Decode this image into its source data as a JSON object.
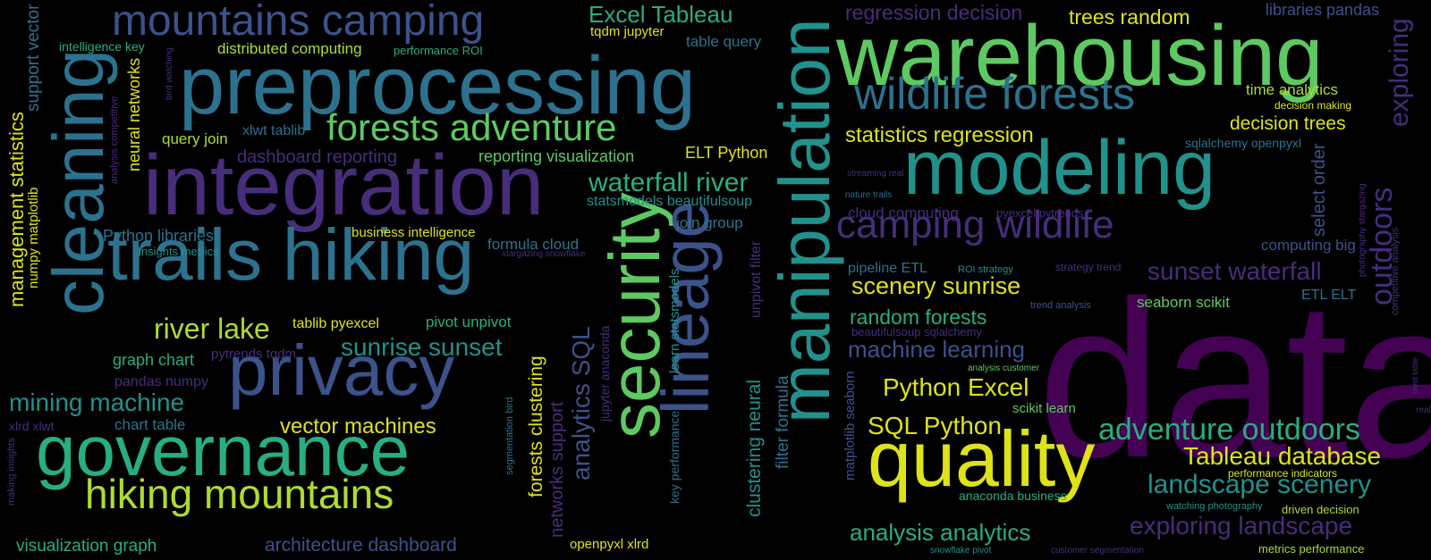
{
  "wordcloud": {
    "palette": {
      "dark_purple": "#440154",
      "purple": "#472d7b",
      "indigo": "#3b528b",
      "blue": "#2c728e",
      "teal": "#21918c",
      "green_teal": "#28ae80",
      "green": "#5ec962",
      "lime": "#addc30",
      "yellow": "#dde318"
    },
    "words": [
      {
        "text": "data",
        "color": "#440154"
      },
      {
        "text": "warehousing",
        "color": "#5ec962"
      },
      {
        "text": "preprocessing",
        "color": "#2c728e"
      },
      {
        "text": "integration",
        "color": "#472d7b"
      },
      {
        "text": "modeling",
        "color": "#21918c"
      },
      {
        "text": "trails hiking",
        "color": "#2c728e"
      },
      {
        "text": "governance",
        "color": "#28ae80"
      },
      {
        "text": "privacy",
        "color": "#3b528b"
      },
      {
        "text": "quality",
        "color": "#dde318"
      },
      {
        "text": "cleaning",
        "color": "#2c728e"
      },
      {
        "text": "security",
        "color": "#5ec962"
      },
      {
        "text": "manipulation",
        "color": "#21918c"
      },
      {
        "text": "lineage",
        "color": "#3b528b"
      },
      {
        "text": "mountains camping",
        "color": "#3b528b"
      },
      {
        "text": "wildlife forests",
        "color": "#2c728e"
      },
      {
        "text": "camping wildlife",
        "color": "#472d7b"
      },
      {
        "text": "forests adventure",
        "color": "#5ec962"
      },
      {
        "text": "hiking mountains",
        "color": "#addc30"
      },
      {
        "text": "Excel Tableau",
        "color": "#28ae80"
      },
      {
        "text": "regression decision",
        "color": "#472d7b"
      },
      {
        "text": "trees random",
        "color": "#dde318"
      },
      {
        "text": "libraries pandas",
        "color": "#3b528b"
      },
      {
        "text": "exploring",
        "color": "#472d7b"
      },
      {
        "text": "outdoors",
        "color": "#472d7b"
      },
      {
        "text": "time analytics",
        "color": "#addc30"
      },
      {
        "text": "decision making",
        "color": "#dde318"
      },
      {
        "text": "decision trees",
        "color": "#dde318"
      },
      {
        "text": "statistics regression",
        "color": "#dde318"
      },
      {
        "text": "sqlalchemy openpyxl",
        "color": "#2c728e"
      },
      {
        "text": "select order",
        "color": "#3b528b"
      },
      {
        "text": "photography stargazing",
        "color": "#472d7b"
      },
      {
        "text": "competitive analysis",
        "color": "#472d7b"
      },
      {
        "text": "streaming real",
        "color": "#472d7b"
      },
      {
        "text": "nature trails",
        "color": "#2c728e"
      },
      {
        "text": "cloud computing",
        "color": "#472d7b"
      },
      {
        "text": "pyexcel pytrends",
        "color": "#472d7b"
      },
      {
        "text": "computing big",
        "color": "#3b528b"
      },
      {
        "text": "sunset waterfall",
        "color": "#472d7b"
      },
      {
        "text": "pipeline ETL",
        "color": "#2c728e"
      },
      {
        "text": "ROI strategy",
        "color": "#21918c"
      },
      {
        "text": "strategy trend",
        "color": "#472d7b"
      },
      {
        "text": "ETL ELT",
        "color": "#2c728e"
      },
      {
        "text": "scenery sunrise",
        "color": "#dde318"
      },
      {
        "text": "seaborn scikit",
        "color": "#5ec962"
      },
      {
        "text": "trend analysis",
        "color": "#3b528b"
      },
      {
        "text": "random forests",
        "color": "#28ae80"
      },
      {
        "text": "beautifulsoup sqlalchemy",
        "color": "#472d7b"
      },
      {
        "text": "machine learning",
        "color": "#3b528b"
      },
      {
        "text": "analysis customer",
        "color": "#5ec962"
      },
      {
        "text": "Python Excel",
        "color": "#dde318"
      },
      {
        "text": "scikit learn",
        "color": "#5ec962"
      },
      {
        "text": "SQL Python",
        "color": "#dde318"
      },
      {
        "text": "real time",
        "color": "#472d7b"
      },
      {
        "text": "adventure outdoors",
        "color": "#28ae80"
      },
      {
        "text": "pivot table",
        "color": "#472d7b"
      },
      {
        "text": "Tableau database",
        "color": "#dde318"
      },
      {
        "text": "performance indicators",
        "color": "#dde318"
      },
      {
        "text": "landscape scenery",
        "color": "#21918c"
      },
      {
        "text": "anaconda business",
        "color": "#28ae80"
      },
      {
        "text": "watching photography",
        "color": "#21918c"
      },
      {
        "text": "driven decision",
        "color": "#addc30"
      },
      {
        "text": "analysis analytics",
        "color": "#28ae80"
      },
      {
        "text": "exploring landscape",
        "color": "#472d7b"
      },
      {
        "text": "snowflake pivot",
        "color": "#21918c"
      },
      {
        "text": "customer segmentation",
        "color": "#472d7b"
      },
      {
        "text": "metrics performance",
        "color": "#addc30"
      },
      {
        "text": "tqdm jupyter",
        "color": "#dde318"
      },
      {
        "text": "table query",
        "color": "#2c728e"
      },
      {
        "text": "distributed computing",
        "color": "#addc30"
      },
      {
        "text": "performance ROI",
        "color": "#28ae80"
      },
      {
        "text": "intelligence key",
        "color": "#28ae80"
      },
      {
        "text": "support vector",
        "color": "#2c728e"
      },
      {
        "text": "bird watching",
        "color": "#472d7b"
      },
      {
        "text": "xlwt tablib",
        "color": "#2c728e"
      },
      {
        "text": "query join",
        "color": "#addc30"
      },
      {
        "text": "analysis competitive",
        "color": "#472d7b"
      },
      {
        "text": "neural networks",
        "color": "#dde318"
      },
      {
        "text": "ELT Python",
        "color": "#dde318"
      },
      {
        "text": "dashboard reporting",
        "color": "#472d7b"
      },
      {
        "text": "reporting visualization",
        "color": "#5ec962"
      },
      {
        "text": "waterfall river",
        "color": "#28ae80"
      },
      {
        "text": "statsmodels beautifulsoup",
        "color": "#21918c"
      },
      {
        "text": "join group",
        "color": "#2c728e"
      },
      {
        "text": "management statistics",
        "color": "#dde318"
      },
      {
        "text": "numpy matplotlib",
        "color": "#dde318"
      },
      {
        "text": "Python libraries",
        "color": "#2c728e"
      },
      {
        "text": "insights metrics",
        "color": "#21918c"
      },
      {
        "text": "business intelligence",
        "color": "#dde318"
      },
      {
        "text": "formula cloud",
        "color": "#2c728e"
      },
      {
        "text": "stargazing snowflake",
        "color": "#472d7b"
      },
      {
        "text": "unpivot filter",
        "color": "#472d7b"
      },
      {
        "text": "river lake",
        "color": "#addc30"
      },
      {
        "text": "tablib pyexcel",
        "color": "#dde318"
      },
      {
        "text": "pivot unpivot",
        "color": "#28ae80"
      },
      {
        "text": "sunrise sunset",
        "color": "#21918c"
      },
      {
        "text": "pytrends tqdm",
        "color": "#472d7b"
      },
      {
        "text": "graph chart",
        "color": "#28ae80"
      },
      {
        "text": "pandas numpy",
        "color": "#472d7b"
      },
      {
        "text": "mining machine",
        "color": "#21918c"
      },
      {
        "text": "chart table",
        "color": "#2c728e"
      },
      {
        "text": "xlrd xlwt",
        "color": "#472d7b"
      },
      {
        "text": "vector machines",
        "color": "#dde318"
      },
      {
        "text": "making insights",
        "color": "#472d7b"
      },
      {
        "text": "visualization graph",
        "color": "#28ae80"
      },
      {
        "text": "architecture dashboard",
        "color": "#3b528b"
      },
      {
        "text": "segmentation bird",
        "color": "#2c728e"
      },
      {
        "text": "networks support",
        "color": "#472d7b"
      },
      {
        "text": "forests clustering",
        "color": "#dde318"
      },
      {
        "text": "analytics SQL",
        "color": "#3b528b"
      },
      {
        "text": "jupyter anaconda",
        "color": "#472d7b"
      },
      {
        "text": "learn statsmodels",
        "color": "#21918c"
      },
      {
        "text": "key performance",
        "color": "#2c728e"
      },
      {
        "text": "clustering neural",
        "color": "#21918c"
      },
      {
        "text": "filter formula",
        "color": "#2c728e"
      },
      {
        "text": "matplotlib seaborn",
        "color": "#3b528b"
      },
      {
        "text": "openpyxl xlrd",
        "color": "#dde318"
      }
    ]
  }
}
